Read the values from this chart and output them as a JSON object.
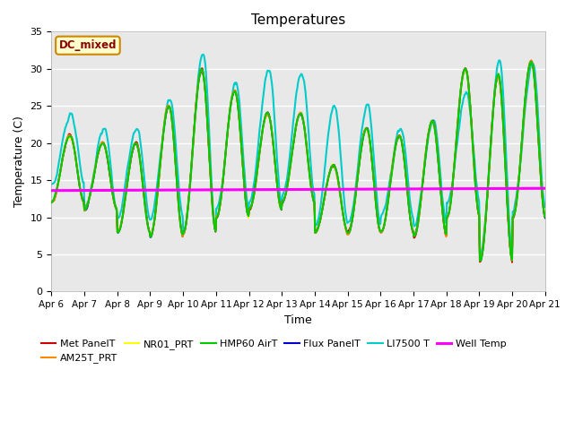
{
  "title": "Temperatures",
  "xlabel": "Time",
  "ylabel": "Temperature (C)",
  "ylim": [
    0,
    35
  ],
  "n_days": 15,
  "xtick_labels": [
    "Apr 6",
    "Apr 7",
    "Apr 8",
    "Apr 9",
    "Apr 10",
    "Apr 11",
    "Apr 12",
    "Apr 13",
    "Apr 14",
    "Apr 15",
    "Apr 16",
    "Apr 17",
    "Apr 18",
    "Apr 19",
    "Apr 20",
    "Apr 21"
  ],
  "ytick_values": [
    0,
    5,
    10,
    15,
    20,
    25,
    30,
    35
  ],
  "well_temp_value": 13.7,
  "annotation_text": "DC_mixed",
  "bg_color": "#e8e8e8",
  "legend_entries": [
    "Met PanelT",
    "AM25T_PRT",
    "NR01_PRT",
    "HMP60 AirT",
    "Flux PanelT",
    "LI7500 T",
    "Well Temp"
  ],
  "legend_colors": [
    "#cc0000",
    "#ff8800",
    "#ffff00",
    "#00cc00",
    "#0000cc",
    "#00cccc",
    "#ff00ff"
  ],
  "day_peaks": [
    21,
    20,
    20,
    25,
    30,
    27,
    24,
    24,
    17,
    22,
    21,
    23,
    30,
    29,
    31
  ],
  "day_troughs": [
    12,
    11,
    8,
    7.5,
    8,
    10,
    11,
    12,
    8,
    8,
    8,
    7.5,
    10,
    4,
    10
  ],
  "li7500_peaks": [
    24,
    22,
    22,
    26,
    32,
    28,
    30,
    29.5,
    25,
    25,
    22,
    23,
    27,
    31,
    31
  ],
  "li7500_troughs": [
    14.5,
    11,
    10,
    10,
    8,
    11,
    12,
    13,
    9,
    9,
    10,
    9,
    12,
    5,
    11
  ]
}
